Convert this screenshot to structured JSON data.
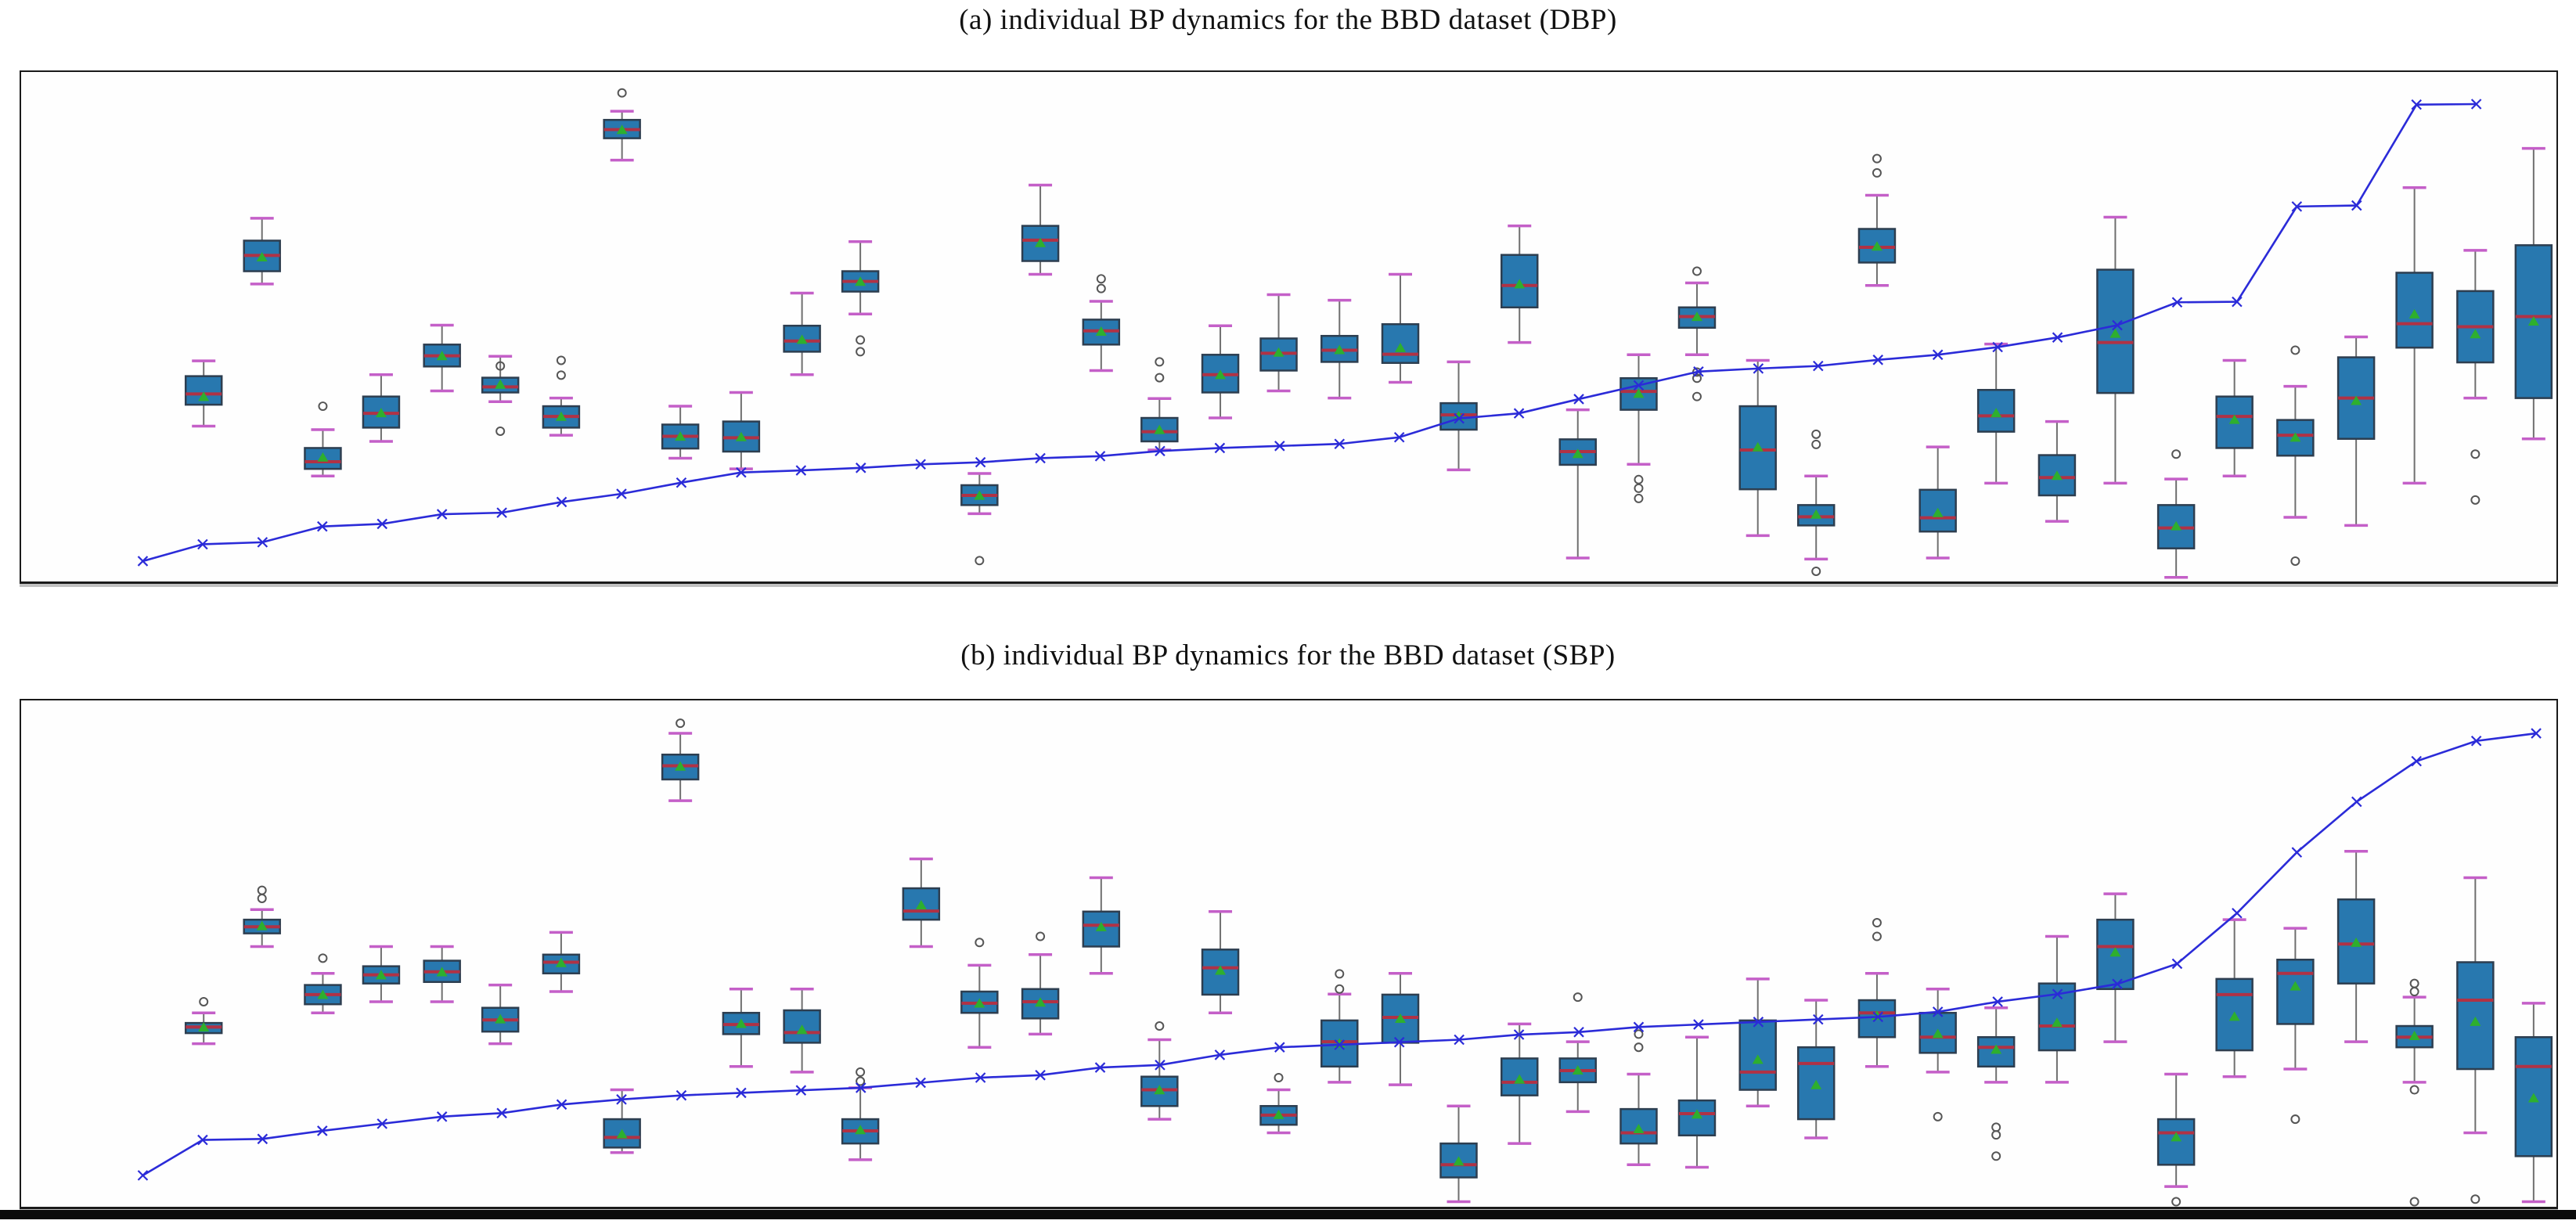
{
  "figure": {
    "background": "#ffffff",
    "panels_border_color": "#1a1a1a"
  },
  "style": {
    "box_fill": "#2878af",
    "box_edge": "#2d3e50",
    "median_color": "#b03245",
    "mean_color": "#2eaf2e",
    "whisker_color": "#6f6f6f",
    "cap_color": "#c45fc8",
    "outlier_color": "#555555",
    "line_color": "#2b2bd8"
  },
  "chart_data": [
    {
      "type": "boxplot+line",
      "title": "(a) individual BP dynamics for the BBD dataset (DBP)",
      "xlabel": "",
      "ylabel": "",
      "axes_ticks_visible": false,
      "ylim": [
        0,
        100
      ],
      "units": "normalized-percent-of-panel-height",
      "legend": null,
      "line": {
        "marker": "x",
        "x_start": 0.048,
        "x_step": 0.0236,
        "y": [
          4.0,
          7.3,
          7.7,
          10.8,
          11.3,
          13.2,
          13.5,
          15.6,
          17.2,
          19.4,
          21.4,
          21.8,
          22.3,
          23.0,
          23.4,
          24.2,
          24.6,
          25.6,
          26.2,
          26.6,
          27.0,
          28.3,
          32.0,
          33.0,
          35.8,
          38.5,
          41.2,
          41.8,
          42.3,
          43.5,
          44.5,
          46.0,
          47.9,
          50.3,
          54.8,
          54.9,
          73.6,
          73.8,
          93.6,
          93.7
        ]
      },
      "boxes": [
        {
          "x": 0.072,
          "q1": 34.7,
          "median": 36.8,
          "q3": 40.3,
          "lo": 30.5,
          "hi": 43.3,
          "mean": 36.2
        },
        {
          "x": 0.095,
          "q1": 60.9,
          "median": 64.0,
          "q3": 66.9,
          "lo": 58.4,
          "hi": 71.3,
          "mean": 63.6
        },
        {
          "x": 0.119,
          "q1": 22.1,
          "median": 23.5,
          "q3": 26.2,
          "lo": 20.7,
          "hi": 29.8,
          "mean": 24.3,
          "out_hi": [
            34.4
          ]
        },
        {
          "x": 0.142,
          "q1": 30.2,
          "median": 33.0,
          "q3": 36.3,
          "lo": 27.5,
          "hi": 40.6,
          "mean": 33.0
        },
        {
          "x": 0.166,
          "q1": 42.2,
          "median": 44.3,
          "q3": 46.5,
          "lo": 37.4,
          "hi": 50.3,
          "mean": 44.2
        },
        {
          "x": 0.189,
          "q1": 37.1,
          "median": 38.2,
          "q3": 40.0,
          "lo": 35.3,
          "hi": 44.2,
          "mean": 38.6,
          "out_hi": [
            42.3
          ],
          "out_lo": [
            29.5
          ]
        },
        {
          "x": 0.213,
          "q1": 30.2,
          "median": 32.4,
          "q3": 34.4,
          "lo": 28.7,
          "hi": 36.0,
          "mean": 32.3,
          "out_hi": [
            43.4,
            40.5
          ]
        },
        {
          "x": 0.237,
          "q1": 87.0,
          "median": 88.7,
          "q3": 90.6,
          "lo": 82.7,
          "hi": 92.3,
          "mean": 88.6,
          "out_hi": [
            95.9
          ]
        },
        {
          "x": 0.26,
          "q1": 26.1,
          "median": 28.5,
          "q3": 30.8,
          "lo": 24.2,
          "hi": 34.4,
          "mean": 28.4
        },
        {
          "x": 0.284,
          "q1": 25.5,
          "median": 28.2,
          "q3": 31.4,
          "lo": 22.1,
          "hi": 37.1,
          "mean": 28.3
        },
        {
          "x": 0.308,
          "q1": 45.1,
          "median": 47.2,
          "q3": 50.2,
          "lo": 40.6,
          "hi": 56.6,
          "mean": 47.4
        },
        {
          "x": 0.331,
          "q1": 56.9,
          "median": 58.9,
          "q3": 60.9,
          "lo": 52.5,
          "hi": 66.7,
          "mean": 58.8,
          "out_lo": [
            47.4,
            45.1
          ]
        },
        {
          "x": 0.378,
          "q1": 15.0,
          "median": 16.9,
          "q3": 18.9,
          "lo": 13.3,
          "hi": 21.2,
          "mean": 16.8,
          "out_lo": [
            4.1
          ]
        },
        {
          "x": 0.402,
          "q1": 62.9,
          "median": 67.0,
          "q3": 69.8,
          "lo": 60.3,
          "hi": 77.8,
          "mean": 66.4
        },
        {
          "x": 0.426,
          "q1": 46.5,
          "median": 49.2,
          "q3": 51.4,
          "lo": 41.4,
          "hi": 55.0,
          "mean": 49.0,
          "out_hi": [
            59.4,
            57.5
          ]
        },
        {
          "x": 0.449,
          "q1": 27.5,
          "median": 29.4,
          "q3": 32.1,
          "lo": 25.8,
          "hi": 35.9,
          "mean": 29.7,
          "out_hi": [
            43.1,
            40.0
          ]
        },
        {
          "x": 0.473,
          "q1": 37.1,
          "median": 40.6,
          "q3": 44.5,
          "lo": 32.1,
          "hi": 50.2,
          "mean": 40.5
        },
        {
          "x": 0.496,
          "q1": 41.4,
          "median": 44.8,
          "q3": 47.7,
          "lo": 37.4,
          "hi": 56.3,
          "mean": 44.9
        },
        {
          "x": 0.52,
          "q1": 43.1,
          "median": 45.4,
          "q3": 48.2,
          "lo": 36.0,
          "hi": 55.2,
          "mean": 45.4
        },
        {
          "x": 0.544,
          "q1": 42.9,
          "median": 44.6,
          "q3": 50.5,
          "lo": 39.1,
          "hi": 60.3,
          "mean": 45.8
        },
        {
          "x": 0.567,
          "q1": 29.8,
          "median": 32.7,
          "q3": 35.0,
          "lo": 21.9,
          "hi": 43.1,
          "mean": 32.4
        },
        {
          "x": 0.591,
          "q1": 53.8,
          "median": 58.1,
          "q3": 64.1,
          "lo": 46.9,
          "hi": 69.8,
          "mean": 58.3
        },
        {
          "x": 0.614,
          "q1": 22.9,
          "median": 25.5,
          "q3": 27.9,
          "lo": 4.6,
          "hi": 33.7,
          "mean": 25.0
        },
        {
          "x": 0.638,
          "q1": 33.7,
          "median": 37.3,
          "q3": 39.9,
          "lo": 23.0,
          "hi": 44.5,
          "mean": 36.8,
          "out_lo": [
            20.0,
            18.3,
            16.3
          ]
        },
        {
          "x": 0.661,
          "q1": 49.8,
          "median": 52.0,
          "q3": 53.8,
          "lo": 44.5,
          "hi": 58.6,
          "mean": 51.9,
          "out_hi": [
            60.9
          ],
          "out_lo": [
            41.1,
            39.9,
            36.3
          ]
        },
        {
          "x": 0.685,
          "q1": 18.1,
          "median": 25.8,
          "q3": 34.4,
          "lo": 9.0,
          "hi": 43.4,
          "mean": 26.3
        },
        {
          "x": 0.708,
          "q1": 11.0,
          "median": 12.7,
          "q3": 15.0,
          "lo": 4.4,
          "hi": 20.7,
          "mean": 13.1,
          "out_hi": [
            28.9,
            26.9
          ],
          "out_lo": [
            2.0
          ]
        },
        {
          "x": 0.732,
          "q1": 62.6,
          "median": 65.6,
          "q3": 69.2,
          "lo": 58.1,
          "hi": 75.8,
          "mean": 65.7,
          "out_hi": [
            83.0,
            80.2
          ]
        },
        {
          "x": 0.756,
          "q1": 9.8,
          "median": 12.5,
          "q3": 18.0,
          "lo": 4.6,
          "hi": 26.4,
          "mean": 13.4
        },
        {
          "x": 0.779,
          "q1": 29.4,
          "median": 32.5,
          "q3": 37.6,
          "lo": 19.3,
          "hi": 46.6,
          "mean": 33.0
        },
        {
          "x": 0.803,
          "q1": 16.9,
          "median": 20.4,
          "q3": 24.8,
          "lo": 11.8,
          "hi": 31.4,
          "mean": 20.7
        },
        {
          "x": 0.826,
          "q1": 37.0,
          "median": 46.9,
          "q3": 61.2,
          "lo": 19.3,
          "hi": 71.5,
          "mean": 48.6
        },
        {
          "x": 0.85,
          "q1": 6.5,
          "median": 10.5,
          "q3": 15.0,
          "lo": 0.8,
          "hi": 20.1,
          "mean": 10.8,
          "out_hi": [
            25.0
          ]
        },
        {
          "x": 0.873,
          "q1": 26.2,
          "median": 32.4,
          "q3": 36.3,
          "lo": 20.7,
          "hi": 43.4,
          "mean": 31.7
        },
        {
          "x": 0.897,
          "q1": 24.7,
          "median": 28.7,
          "q3": 31.7,
          "lo": 12.6,
          "hi": 38.3,
          "mean": 28.2,
          "out_hi": [
            45.4
          ],
          "out_lo": [
            4.0
          ]
        },
        {
          "x": 0.921,
          "q1": 28.0,
          "median": 36.0,
          "q3": 44.0,
          "lo": 11.0,
          "hi": 48.0,
          "mean": 35.4
        },
        {
          "x": 0.944,
          "q1": 45.9,
          "median": 50.6,
          "q3": 60.6,
          "lo": 19.3,
          "hi": 77.3,
          "mean": 52.4
        },
        {
          "x": 0.968,
          "q1": 43.0,
          "median": 50.0,
          "q3": 57.0,
          "lo": 36.0,
          "hi": 65.0,
          "mean": 48.5,
          "out_lo": [
            25.0,
            16.0
          ]
        },
        {
          "x": 0.991,
          "q1": 36.0,
          "median": 52.0,
          "q3": 66.0,
          "lo": 28.0,
          "hi": 85.0,
          "mean": 51.0
        }
      ]
    },
    {
      "type": "boxplot+line",
      "title": "(b) individual BP dynamics for the BBD dataset (SBP)",
      "xlabel": "",
      "ylabel": "",
      "axes_ticks_visible": false,
      "ylim": [
        0,
        100
      ],
      "units": "normalized-percent-of-panel-height",
      "legend": null,
      "line": {
        "marker": "x",
        "x_start": 0.048,
        "x_step": 0.0236,
        "y": [
          6.2,
          13.2,
          13.4,
          15.0,
          16.4,
          17.8,
          18.5,
          20.2,
          21.2,
          22.0,
          22.5,
          23.0,
          23.5,
          24.5,
          25.5,
          26.0,
          27.5,
          28.0,
          30.0,
          31.5,
          32.0,
          32.5,
          33.0,
          34.0,
          34.5,
          35.5,
          36.0,
          36.5,
          37.0,
          37.5,
          38.5,
          40.5,
          42.0,
          44.0,
          48.0,
          58.0,
          70.0,
          80.0,
          88.0,
          92.0,
          93.5
        ]
      },
      "boxes": [
        {
          "x": 0.072,
          "q1": 34.3,
          "median": 35.5,
          "q3": 36.3,
          "lo": 32.2,
          "hi": 38.3,
          "mean": 35.4,
          "out_hi": [
            40.5
          ]
        },
        {
          "x": 0.095,
          "q1": 54.0,
          "median": 55.3,
          "q3": 56.7,
          "lo": 51.4,
          "hi": 58.7,
          "mean": 55.4,
          "out_hi": [
            62.5,
            60.9
          ]
        },
        {
          "x": 0.119,
          "q1": 40.0,
          "median": 41.9,
          "q3": 43.8,
          "lo": 38.3,
          "hi": 46.1,
          "mean": 41.8,
          "out_hi": [
            49.1
          ]
        },
        {
          "x": 0.142,
          "q1": 44.1,
          "median": 45.8,
          "q3": 47.5,
          "lo": 40.5,
          "hi": 51.4,
          "mean": 45.7
        },
        {
          "x": 0.166,
          "q1": 44.4,
          "median": 46.4,
          "q3": 48.6,
          "lo": 40.5,
          "hi": 51.4,
          "mean": 46.3
        },
        {
          "x": 0.189,
          "q1": 34.6,
          "median": 36.9,
          "q3": 39.3,
          "lo": 32.2,
          "hi": 43.8,
          "mean": 37.0
        },
        {
          "x": 0.213,
          "q1": 46.1,
          "median": 48.3,
          "q3": 49.8,
          "lo": 42.5,
          "hi": 54.2,
          "mean": 48.1
        },
        {
          "x": 0.237,
          "q1": 11.7,
          "median": 13.7,
          "q3": 17.3,
          "lo": 10.7,
          "hi": 23.1,
          "mean": 14.3
        },
        {
          "x": 0.26,
          "q1": 84.4,
          "median": 87.1,
          "q3": 89.3,
          "lo": 80.2,
          "hi": 93.5,
          "mean": 86.9,
          "out_hi": [
            95.5
          ]
        },
        {
          "x": 0.284,
          "q1": 34.1,
          "median": 36.0,
          "q3": 38.3,
          "lo": 27.7,
          "hi": 43.0,
          "mean": 36.1
        },
        {
          "x": 0.308,
          "q1": 32.4,
          "median": 34.4,
          "q3": 38.8,
          "lo": 26.6,
          "hi": 43.0,
          "mean": 34.9
        },
        {
          "x": 0.331,
          "q1": 12.5,
          "median": 15.0,
          "q3": 17.3,
          "lo": 9.3,
          "hi": 23.5,
          "mean": 15.1,
          "out_hi": [
            26.6,
            24.8
          ]
        },
        {
          "x": 0.355,
          "q1": 56.7,
          "median": 58.4,
          "q3": 62.9,
          "lo": 51.4,
          "hi": 68.7,
          "mean": 59.5
        },
        {
          "x": 0.378,
          "q1": 38.3,
          "median": 40.2,
          "q3": 42.5,
          "lo": 31.5,
          "hi": 47.7,
          "mean": 40.1,
          "out_hi": [
            52.2
          ]
        },
        {
          "x": 0.402,
          "q1": 37.2,
          "median": 40.5,
          "q3": 43.0,
          "lo": 34.1,
          "hi": 49.8,
          "mean": 40.3,
          "out_hi": [
            53.4
          ]
        },
        {
          "x": 0.426,
          "q1": 51.4,
          "median": 55.6,
          "q3": 58.3,
          "lo": 46.1,
          "hi": 65.0,
          "mean": 55.2
        },
        {
          "x": 0.449,
          "q1": 19.9,
          "median": 23.1,
          "q3": 25.7,
          "lo": 17.3,
          "hi": 33.0,
          "mean": 23.0,
          "out_hi": [
            35.7
          ]
        },
        {
          "x": 0.473,
          "q1": 41.9,
          "median": 47.2,
          "q3": 50.8,
          "lo": 38.3,
          "hi": 58.3,
          "mean": 46.6
        },
        {
          "x": 0.496,
          "q1": 16.2,
          "median": 18.1,
          "q3": 19.9,
          "lo": 14.6,
          "hi": 23.1,
          "mean": 18.1,
          "out_hi": [
            25.5
          ]
        },
        {
          "x": 0.52,
          "q1": 27.7,
          "median": 32.6,
          "q3": 36.8,
          "lo": 24.6,
          "hi": 42.0,
          "mean": 32.2,
          "out_hi": [
            46.0,
            43.0
          ]
        },
        {
          "x": 0.544,
          "q1": 32.4,
          "median": 37.4,
          "q3": 41.9,
          "lo": 24.1,
          "hi": 46.1,
          "mean": 37.1
        },
        {
          "x": 0.567,
          "q1": 5.8,
          "median": 8.3,
          "q3": 12.5,
          "lo": 1.0,
          "hi": 19.9,
          "mean": 8.9
        },
        {
          "x": 0.591,
          "q1": 22.0,
          "median": 24.6,
          "q3": 29.3,
          "lo": 12.5,
          "hi": 36.1,
          "mean": 25.1
        },
        {
          "x": 0.614,
          "q1": 24.6,
          "median": 26.9,
          "q3": 29.3,
          "lo": 18.8,
          "hi": 32.6,
          "mean": 26.9,
          "out_hi": [
            41.4
          ]
        },
        {
          "x": 0.638,
          "q1": 12.5,
          "median": 14.6,
          "q3": 19.3,
          "lo": 8.3,
          "hi": 26.2,
          "mean": 15.3,
          "out_hi": [
            34.1,
            31.5
          ]
        },
        {
          "x": 0.661,
          "q1": 14.1,
          "median": 18.4,
          "q3": 21.0,
          "lo": 7.8,
          "hi": 33.5,
          "mean": 18.2
        },
        {
          "x": 0.685,
          "q1": 23.1,
          "median": 26.6,
          "q3": 36.8,
          "lo": 19.9,
          "hi": 45.0,
          "mean": 29.0
        },
        {
          "x": 0.708,
          "q1": 17.3,
          "median": 28.3,
          "q3": 31.5,
          "lo": 13.6,
          "hi": 40.8,
          "mean": 24.0
        },
        {
          "x": 0.732,
          "q1": 33.5,
          "median": 38.3,
          "q3": 40.8,
          "lo": 27.7,
          "hi": 46.1,
          "mean": 37.7,
          "out_hi": [
            56.1,
            53.4
          ]
        },
        {
          "x": 0.756,
          "q1": 30.4,
          "median": 33.5,
          "q3": 38.3,
          "lo": 26.6,
          "hi": 43.0,
          "mean": 34.1,
          "out_lo": [
            17.8
          ]
        },
        {
          "x": 0.779,
          "q1": 27.7,
          "median": 31.5,
          "q3": 33.5,
          "lo": 24.6,
          "hi": 39.3,
          "mean": 31.0,
          "out_lo": [
            15.7,
            14.2,
            10.0
          ]
        },
        {
          "x": 0.803,
          "q1": 30.9,
          "median": 35.7,
          "q3": 44.1,
          "lo": 24.6,
          "hi": 53.4,
          "mean": 36.3
        },
        {
          "x": 0.826,
          "q1": 43.0,
          "median": 51.4,
          "q3": 56.7,
          "lo": 32.6,
          "hi": 61.8,
          "mean": 50.2
        },
        {
          "x": 0.85,
          "q1": 8.3,
          "median": 14.6,
          "q3": 17.3,
          "lo": 4.0,
          "hi": 26.2,
          "mean": 13.7,
          "out_lo": [
            1.0
          ]
        },
        {
          "x": 0.873,
          "q1": 30.9,
          "median": 41.9,
          "q3": 45.0,
          "lo": 25.7,
          "hi": 56.7,
          "mean": 37.5
        },
        {
          "x": 0.897,
          "q1": 36.1,
          "median": 46.1,
          "q3": 48.8,
          "lo": 27.2,
          "hi": 55.0,
          "mean": 43.5,
          "out_lo": [
            17.3
          ]
        },
        {
          "x": 0.921,
          "q1": 44.1,
          "median": 51.9,
          "q3": 60.7,
          "lo": 32.6,
          "hi": 70.2,
          "mean": 52.1
        },
        {
          "x": 0.944,
          "q1": 31.5,
          "median": 33.5,
          "q3": 35.7,
          "lo": 24.6,
          "hi": 41.4,
          "mean": 33.7,
          "out_hi": [
            44.1,
            42.5
          ],
          "out_lo": [
            23.1,
            1.0
          ]
        },
        {
          "x": 0.968,
          "q1": 27.2,
          "median": 40.8,
          "q3": 48.3,
          "lo": 14.6,
          "hi": 65.0,
          "mean": 36.5,
          "out_lo": [
            1.5
          ]
        },
        {
          "x": 0.991,
          "q1": 10.0,
          "median": 27.7,
          "q3": 33.5,
          "lo": 1.0,
          "hi": 40.2,
          "mean": 21.4
        }
      ]
    }
  ]
}
